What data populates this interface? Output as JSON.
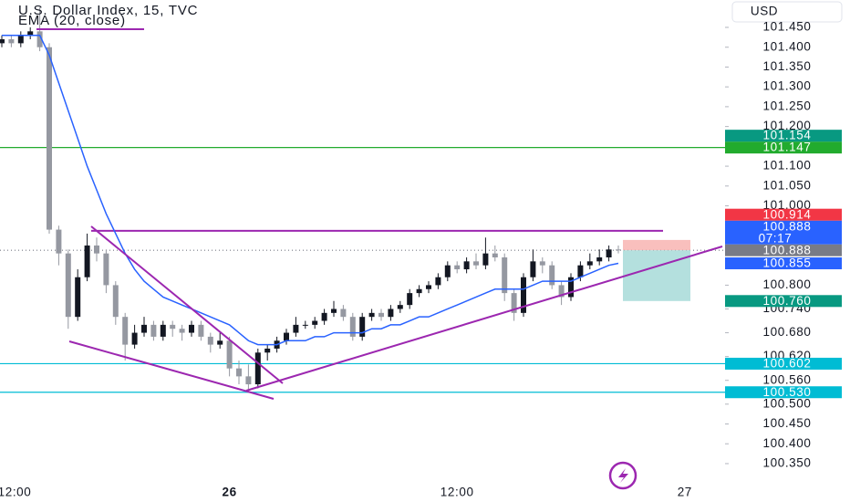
{
  "header": {
    "symbol": "U.S. Dollar Index, 15, TVC",
    "indicator": "EMA (20, close)",
    "currency": "USD"
  },
  "chart_data": {
    "type": "candlestick",
    "ylim": [
      101.5,
      100.3
    ],
    "yticks": [
      {
        "value": 101.45,
        "label": "101.450"
      },
      {
        "value": 101.4,
        "label": "101.400"
      },
      {
        "value": 101.35,
        "label": "101.350"
      },
      {
        "value": 101.3,
        "label": "101.300"
      },
      {
        "value": 101.25,
        "label": "101.250"
      },
      {
        "value": 101.2,
        "label": "101.200"
      },
      {
        "value": 101.1,
        "label": "101.100"
      },
      {
        "value": 101.05,
        "label": "101.050"
      },
      {
        "value": 101.0,
        "label": "101.000"
      },
      {
        "value": 100.8,
        "label": "100.800"
      },
      {
        "value": 100.74,
        "label": "100.740"
      },
      {
        "value": 100.68,
        "label": "100.680"
      },
      {
        "value": 100.62,
        "label": "100.620"
      },
      {
        "value": 100.56,
        "label": "100.560"
      },
      {
        "value": 100.5,
        "label": "100.500"
      },
      {
        "value": 100.45,
        "label": "100.450"
      },
      {
        "value": 100.4,
        "label": "100.400"
      },
      {
        "value": 100.35,
        "label": "100.350"
      }
    ],
    "xticks": [
      {
        "value": 0,
        "label": "12:00"
      },
      {
        "value": 24,
        "label": "26"
      },
      {
        "value": 48,
        "label": "12:00"
      },
      {
        "value": 72,
        "label": "27"
      }
    ],
    "open": [
      101.41,
      101.42,
      101.41,
      101.43,
      101.44,
      101.4,
      100.94,
      100.88,
      100.72,
      100.82,
      100.9,
      100.88,
      100.8,
      100.72,
      100.65,
      100.68,
      100.7,
      100.67,
      100.7,
      100.69,
      100.68,
      100.7,
      100.67,
      100.65,
      100.66,
      100.59,
      100.57,
      100.55,
      100.63,
      100.64,
      100.66,
      100.68,
      100.7,
      100.7,
      100.71,
      100.73,
      100.74,
      100.72,
      100.67,
      100.72,
      100.73,
      100.72,
      100.74,
      100.75,
      100.78,
      100.79,
      100.8,
      100.82,
      100.85,
      100.84,
      100.86,
      100.85,
      100.88,
      100.87,
      100.78,
      100.73,
      100.82,
      100.86,
      100.85,
      100.8,
      100.77,
      100.82,
      100.85,
      100.86,
      100.87,
      100.89
    ],
    "high": [
      101.43,
      101.43,
      101.44,
      101.45,
      101.5,
      101.41,
      100.95,
      100.89,
      100.84,
      100.93,
      100.92,
      100.89,
      100.81,
      100.73,
      100.7,
      100.72,
      100.71,
      100.71,
      100.71,
      100.7,
      100.71,
      100.71,
      100.68,
      100.68,
      100.67,
      100.61,
      100.6,
      100.64,
      100.65,
      100.67,
      100.69,
      100.72,
      100.71,
      100.72,
      100.74,
      100.76,
      100.75,
      100.73,
      100.73,
      100.74,
      100.74,
      100.75,
      100.76,
      100.79,
      100.8,
      100.81,
      100.83,
      100.86,
      100.86,
      100.87,
      100.88,
      100.92,
      100.9,
      100.88,
      100.79,
      100.83,
      100.89,
      100.87,
      100.86,
      100.81,
      100.83,
      100.86,
      100.88,
      100.89,
      100.9,
      100.9
    ],
    "low": [
      101.4,
      101.4,
      101.4,
      101.42,
      101.39,
      100.93,
      100.85,
      100.69,
      100.71,
      100.81,
      100.86,
      100.78,
      100.7,
      100.61,
      100.64,
      100.67,
      100.66,
      100.66,
      100.67,
      100.66,
      100.67,
      100.66,
      100.63,
      100.64,
      100.57,
      100.55,
      100.53,
      100.54,
      100.61,
      100.63,
      100.65,
      100.67,
      100.69,
      100.69,
      100.7,
      100.72,
      100.71,
      100.66,
      100.66,
      100.71,
      100.71,
      100.71,
      100.73,
      100.74,
      100.77,
      100.78,
      100.79,
      100.81,
      100.83,
      100.83,
      100.84,
      100.84,
      100.86,
      100.76,
      100.71,
      100.72,
      100.81,
      100.83,
      100.79,
      100.75,
      100.76,
      100.81,
      100.84,
      100.85,
      100.86,
      100.88
    ],
    "close": [
      101.42,
      101.41,
      101.43,
      101.44,
      101.4,
      100.94,
      100.88,
      100.72,
      100.82,
      100.9,
      100.88,
      100.8,
      100.72,
      100.65,
      100.68,
      100.7,
      100.67,
      100.7,
      100.69,
      100.68,
      100.7,
      100.67,
      100.65,
      100.66,
      100.59,
      100.57,
      100.55,
      100.63,
      100.64,
      100.66,
      100.68,
      100.7,
      100.7,
      100.71,
      100.73,
      100.74,
      100.72,
      100.67,
      100.72,
      100.73,
      100.72,
      100.74,
      100.75,
      100.78,
      100.79,
      100.8,
      100.82,
      100.85,
      100.84,
      100.86,
      100.85,
      100.88,
      100.87,
      100.78,
      100.73,
      100.82,
      100.86,
      100.85,
      100.8,
      100.77,
      100.82,
      100.85,
      100.86,
      100.87,
      100.89,
      100.888
    ],
    "ema": [
      101.43,
      101.43,
      101.43,
      101.43,
      101.43,
      101.38,
      101.31,
      101.24,
      101.17,
      101.1,
      101.04,
      100.98,
      100.93,
      100.88,
      100.84,
      100.81,
      100.79,
      100.77,
      100.76,
      100.75,
      100.74,
      100.73,
      100.72,
      100.71,
      100.7,
      100.68,
      100.66,
      100.65,
      100.65,
      100.65,
      100.66,
      100.66,
      100.66,
      100.67,
      100.67,
      100.68,
      100.68,
      100.68,
      100.68,
      100.69,
      100.69,
      100.7,
      100.7,
      100.71,
      100.72,
      100.72,
      100.73,
      100.74,
      100.75,
      100.76,
      100.77,
      100.78,
      100.79,
      100.79,
      100.79,
      100.79,
      100.8,
      100.81,
      100.81,
      100.81,
      100.81,
      100.82,
      100.83,
      100.84,
      100.85,
      100.855
    ],
    "ema_color": "#2962ff",
    "up_color": "#131722",
    "down_color": "#9598a1",
    "price_badges": [
      {
        "value": 101.154,
        "label": "101.154",
        "color": "#089981"
      },
      {
        "value": 101.147,
        "label": "101.147",
        "color": "#22ab2e"
      },
      {
        "value": 100.914,
        "label": "100.914",
        "color": "#f23645"
      },
      {
        "value": 100.888,
        "label": "100.888",
        "color": "#2962ff",
        "countdown": "07:17"
      },
      {
        "value": 100.888,
        "label": "100.888",
        "color": "#787b86"
      },
      {
        "value": 100.855,
        "label": "100.855",
        "color": "#2962ff"
      },
      {
        "value": 100.76,
        "label": "100.760",
        "color": "#089981"
      },
      {
        "value": 100.602,
        "label": "100.602",
        "color": "#00bcd4"
      },
      {
        "value": 100.53,
        "label": "100.530",
        "color": "#00bcd4"
      }
    ]
  }
}
